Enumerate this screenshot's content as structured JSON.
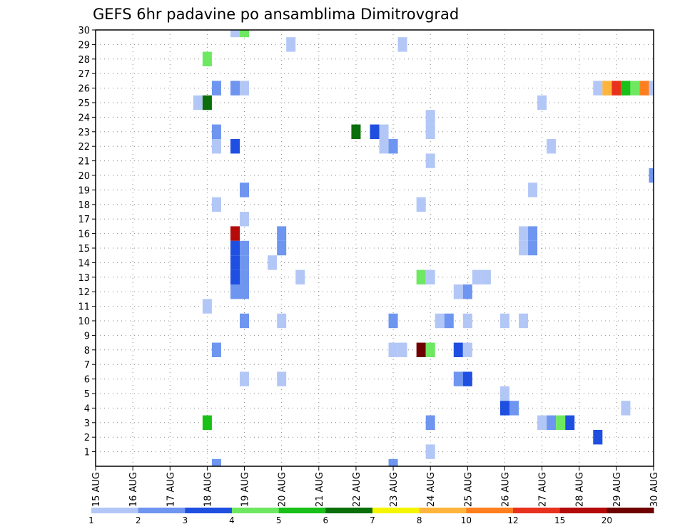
{
  "chart_data": {
    "type": "heatmap",
    "title": "GEFS 6hr padavine po ansamblima Dimitrovgrad",
    "xlabel": "",
    "ylabel": "",
    "x_ticks": [
      "15 AUG",
      "16 AUG",
      "17 AUG",
      "18 AUG",
      "19 AUG",
      "20 AUG",
      "21 AUG",
      "22 AUG",
      "23 AUG",
      "24 AUG",
      "25 AUG",
      "26 AUG",
      "27 AUG",
      "28 AUG",
      "29 AUG",
      "30 AUG"
    ],
    "y_ticks": [
      "1",
      "2",
      "3",
      "4",
      "5",
      "6",
      "7",
      "8",
      "9",
      "10",
      "11",
      "12",
      "13",
      "14",
      "15",
      "16",
      "17",
      "18",
      "19",
      "20",
      "21",
      "22",
      "23",
      "24",
      "25",
      "26",
      "27",
      "28",
      "29",
      "30"
    ],
    "x_range_days": [
      0,
      15
    ],
    "y_range": [
      0,
      30
    ],
    "grid": true,
    "colorbar": {
      "labels": [
        "1",
        "2",
        "3",
        "4",
        "5",
        "6",
        "7",
        "8",
        "10",
        "12",
        "15",
        "20"
      ],
      "colors": [
        "#b3c7f7",
        "#6e95f0",
        "#1f4fe0",
        "#6ee861",
        "#18c018",
        "#0a6e0a",
        "#f5f500",
        "#ffb43c",
        "#ff7f1e",
        "#e8321e",
        "#b40a0a",
        "#6e0000"
      ]
    },
    "members": [
      {
        "member": 30,
        "cells": [
          {
            "t": 3.75,
            "c": 0
          },
          {
            "t": 4.0,
            "c": 3
          }
        ]
      },
      {
        "member": 29,
        "cells": [
          {
            "t": 5.25,
            "c": 0
          },
          {
            "t": 8.25,
            "c": 0
          }
        ]
      },
      {
        "member": 28,
        "cells": [
          {
            "t": 3.0,
            "c": 3
          }
        ]
      },
      {
        "member": 26,
        "cells": [
          {
            "t": 3.25,
            "c": 1
          },
          {
            "t": 3.75,
            "c": 1
          },
          {
            "t": 4.0,
            "c": 0
          },
          {
            "t": 13.5,
            "c": 0
          },
          {
            "t": 13.75,
            "c": 7
          },
          {
            "t": 14.0,
            "c": 9
          },
          {
            "t": 14.25,
            "c": 4
          },
          {
            "t": 14.5,
            "c": 3
          },
          {
            "t": 14.75,
            "c": 8
          },
          {
            "t": 15.0,
            "c": 0
          }
        ]
      },
      {
        "member": 25,
        "cells": [
          {
            "t": 2.75,
            "c": 0
          },
          {
            "t": 3.0,
            "c": 5
          },
          {
            "t": 12.0,
            "c": 0
          }
        ]
      },
      {
        "member": 24,
        "cells": [
          {
            "t": 9.0,
            "c": 0
          }
        ]
      },
      {
        "member": 23,
        "cells": [
          {
            "t": 3.25,
            "c": 1
          },
          {
            "t": 7.0,
            "c": 5
          },
          {
            "t": 7.5,
            "c": 2
          },
          {
            "t": 7.75,
            "c": 0
          },
          {
            "t": 9.0,
            "c": 0
          }
        ]
      },
      {
        "member": 22,
        "cells": [
          {
            "t": 3.25,
            "c": 0
          },
          {
            "t": 3.75,
            "c": 2
          },
          {
            "t": 7.75,
            "c": 0
          },
          {
            "t": 8.0,
            "c": 1
          },
          {
            "t": 12.25,
            "c": 0
          }
        ]
      },
      {
        "member": 21,
        "cells": [
          {
            "t": 9.0,
            "c": 0
          }
        ]
      },
      {
        "member": 20,
        "cells": [
          {
            "t": 15.0,
            "c": 1
          }
        ]
      },
      {
        "member": 19,
        "cells": [
          {
            "t": 4.0,
            "c": 1
          },
          {
            "t": 11.75,
            "c": 0
          }
        ]
      },
      {
        "member": 18,
        "cells": [
          {
            "t": 3.25,
            "c": 0
          },
          {
            "t": 8.75,
            "c": 0
          }
        ]
      },
      {
        "member": 17,
        "cells": [
          {
            "t": 4.0,
            "c": 0
          }
        ]
      },
      {
        "member": 16,
        "cells": [
          {
            "t": 3.75,
            "c": 10
          },
          {
            "t": 5.0,
            "c": 1
          },
          {
            "t": 11.5,
            "c": 0
          },
          {
            "t": 11.75,
            "c": 1
          }
        ]
      },
      {
        "member": 15,
        "cells": [
          {
            "t": 3.75,
            "c": 2
          },
          {
            "t": 4.0,
            "c": 1
          },
          {
            "t": 5.0,
            "c": 1
          },
          {
            "t": 11.5,
            "c": 0
          },
          {
            "t": 11.75,
            "c": 1
          }
        ]
      },
      {
        "member": 14,
        "cells": [
          {
            "t": 3.75,
            "c": 2
          },
          {
            "t": 4.0,
            "c": 1
          },
          {
            "t": 4.75,
            "c": 0
          }
        ]
      },
      {
        "member": 13,
        "cells": [
          {
            "t": 3.75,
            "c": 2
          },
          {
            "t": 4.0,
            "c": 1
          },
          {
            "t": 5.5,
            "c": 0
          },
          {
            "t": 8.75,
            "c": 3
          },
          {
            "t": 9.0,
            "c": 0
          },
          {
            "t": 10.25,
            "c": 0
          },
          {
            "t": 10.5,
            "c": 0
          }
        ]
      },
      {
        "member": 12,
        "cells": [
          {
            "t": 3.75,
            "c": 1
          },
          {
            "t": 4.0,
            "c": 1
          },
          {
            "t": 9.75,
            "c": 0
          },
          {
            "t": 10.0,
            "c": 1
          }
        ]
      },
      {
        "member": 11,
        "cells": [
          {
            "t": 3.0,
            "c": 0
          }
        ]
      },
      {
        "member": 10,
        "cells": [
          {
            "t": 4.0,
            "c": 1
          },
          {
            "t": 5.0,
            "c": 0
          },
          {
            "t": 8.0,
            "c": 1
          },
          {
            "t": 9.25,
            "c": 0
          },
          {
            "t": 9.5,
            "c": 1
          },
          {
            "t": 10.0,
            "c": 0
          },
          {
            "t": 11.0,
            "c": 0
          },
          {
            "t": 11.5,
            "c": 0
          }
        ]
      },
      {
        "member": 8,
        "cells": [
          {
            "t": 3.25,
            "c": 1
          },
          {
            "t": 8.0,
            "c": 0
          },
          {
            "t": 8.25,
            "c": 0
          },
          {
            "t": 8.75,
            "c": 11
          },
          {
            "t": 9.0,
            "c": 3
          },
          {
            "t": 9.75,
            "c": 2
          },
          {
            "t": 10.0,
            "c": 0
          }
        ]
      },
      {
        "member": 6,
        "cells": [
          {
            "t": 4.0,
            "c": 0
          },
          {
            "t": 5.0,
            "c": 0
          },
          {
            "t": 9.75,
            "c": 1
          },
          {
            "t": 10.0,
            "c": 2
          }
        ]
      },
      {
        "member": 5,
        "cells": [
          {
            "t": 11.0,
            "c": 0
          }
        ]
      },
      {
        "member": 4,
        "cells": [
          {
            "t": 11.0,
            "c": 2
          },
          {
            "t": 11.25,
            "c": 1
          },
          {
            "t": 14.25,
            "c": 0
          }
        ]
      },
      {
        "member": 3,
        "cells": [
          {
            "t": 3.0,
            "c": 4
          },
          {
            "t": 9.0,
            "c": 1
          },
          {
            "t": 12.0,
            "c": 0
          },
          {
            "t": 12.25,
            "c": 1
          },
          {
            "t": 12.5,
            "c": 3
          },
          {
            "t": 12.75,
            "c": 2
          }
        ]
      },
      {
        "member": 2,
        "cells": [
          {
            "t": 13.5,
            "c": 2
          }
        ]
      },
      {
        "member": 1,
        "cells": [
          {
            "t": 9.0,
            "c": 0
          }
        ]
      },
      {
        "member": 0,
        "cells": [
          {
            "t": 3.25,
            "c": 1
          },
          {
            "t": 8.0,
            "c": 1
          }
        ]
      }
    ]
  }
}
